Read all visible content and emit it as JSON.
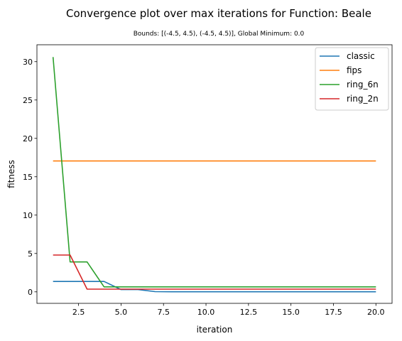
{
  "chart_data": {
    "type": "line",
    "title": "Convergence plot over max iterations for Function: Beale",
    "subtitle": "Bounds: [(-4.5, 4.5), (-4.5, 4.5)], Global Minimum: 0.0",
    "xlabel": "iteration",
    "ylabel": "fitness",
    "xlim": [
      0.05,
      20.95
    ],
    "ylim": [
      -1.5,
      32.2
    ],
    "xticks": [
      2.5,
      5.0,
      7.5,
      10.0,
      12.5,
      15.0,
      17.5,
      20.0
    ],
    "xtick_labels": [
      "2.5",
      "5.0",
      "7.5",
      "10.0",
      "12.5",
      "15.0",
      "17.5",
      "20.0"
    ],
    "yticks": [
      0,
      5,
      10,
      15,
      20,
      25,
      30
    ],
    "ytick_labels": [
      "0",
      "5",
      "10",
      "15",
      "20",
      "25",
      "30"
    ],
    "grid": false,
    "legend_position": "top-right",
    "x": [
      1,
      2,
      3,
      4,
      5,
      6,
      7,
      8,
      9,
      10,
      11,
      12,
      13,
      14,
      15,
      16,
      17,
      18,
      19,
      20
    ],
    "series": [
      {
        "name": "classic",
        "color": "#1f77b4",
        "values": [
          1.35,
          1.35,
          1.35,
          1.35,
          0.3,
          0.3,
          0.03,
          0.01,
          0.01,
          0.01,
          0.01,
          0.01,
          0.01,
          0.01,
          0.01,
          0.01,
          0.01,
          0.01,
          0.01,
          0.01
        ]
      },
      {
        "name": "fips",
        "color": "#ff7f0e",
        "values": [
          17.05,
          17.05,
          17.05,
          17.05,
          17.05,
          17.05,
          17.05,
          17.05,
          17.05,
          17.05,
          17.05,
          17.05,
          17.05,
          17.05,
          17.05,
          17.05,
          17.05,
          17.05,
          17.05,
          17.05
        ]
      },
      {
        "name": "ring_6n",
        "color": "#2ca02c",
        "values": [
          30.6,
          3.9,
          3.9,
          0.65,
          0.65,
          0.65,
          0.65,
          0.65,
          0.65,
          0.65,
          0.65,
          0.65,
          0.65,
          0.65,
          0.65,
          0.65,
          0.65,
          0.65,
          0.65,
          0.65
        ]
      },
      {
        "name": "ring_2n",
        "color": "#d62728",
        "values": [
          4.8,
          4.8,
          0.35,
          0.35,
          0.35,
          0.35,
          0.35,
          0.35,
          0.35,
          0.35,
          0.35,
          0.35,
          0.35,
          0.35,
          0.35,
          0.35,
          0.35,
          0.35,
          0.35,
          0.35
        ]
      }
    ]
  }
}
